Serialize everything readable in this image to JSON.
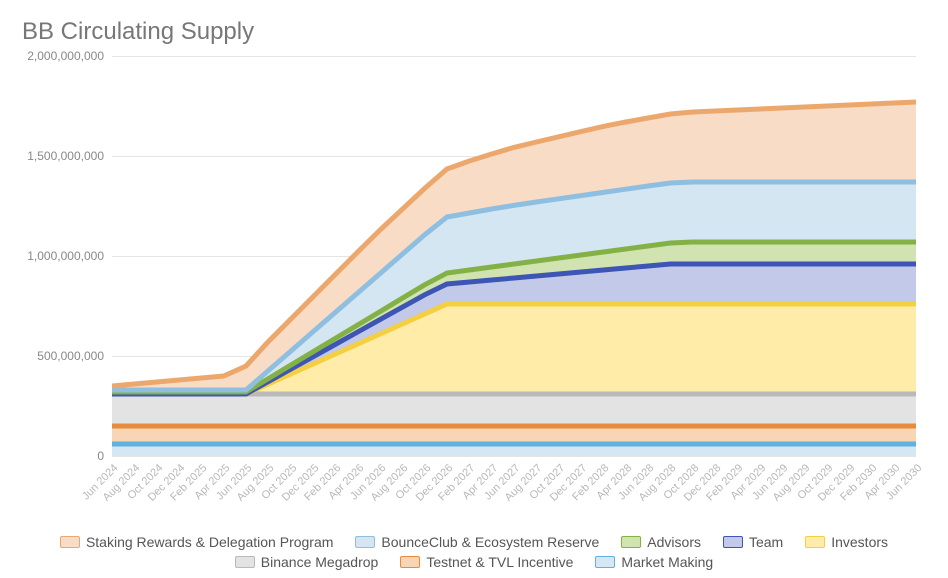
{
  "title": "BB Circulating Supply",
  "chart": {
    "type": "area-stacked",
    "background_color": "#ffffff",
    "grid_color": "#e5e5e5",
    "axis_label_color": "#888888",
    "x_label_color": "#b8b8b8",
    "title_color": "#777777",
    "title_fontsize": 24,
    "axis_fontsize": 12,
    "ylim": [
      0,
      2000000000
    ],
    "ytick_step": 500000000,
    "yticks": [
      {
        "v": 0,
        "label": "0"
      },
      {
        "v": 500000000,
        "label": "500,000,000"
      },
      {
        "v": 1000000000,
        "label": "1,000,000,000"
      },
      {
        "v": 1500000000,
        "label": "1,500,000,000"
      },
      {
        "v": 2000000000,
        "label": "2,000,000,000"
      }
    ],
    "categories": [
      "Jun 2024",
      "Aug 2024",
      "Oct 2024",
      "Dec 2024",
      "Feb 2025",
      "Apr 2025",
      "Jun 2025",
      "Aug 2025",
      "Oct 2025",
      "Dec 2025",
      "Feb 2026",
      "Apr 2026",
      "Jun 2026",
      "Aug 2026",
      "Oct 2026",
      "Dec 2026",
      "Feb 2027",
      "Apr 2027",
      "Jun 2027",
      "Aug 2027",
      "Oct 2027",
      "Dec 2027",
      "Feb 2028",
      "Apr 2028",
      "Jun 2028",
      "Aug 2028",
      "Oct 2028",
      "Dec 2028",
      "Feb 2029",
      "Apr 2029",
      "Jun 2029",
      "Aug 2029",
      "Oct 2029",
      "Dec 2029",
      "Feb 2030",
      "Apr 2030",
      "Jun 2030"
    ],
    "series": [
      {
        "name": "Market Making",
        "fill": "#d4e7f3",
        "stroke": "#61b0df",
        "values": [
          60000000,
          60000000,
          60000000,
          60000000,
          60000000,
          60000000,
          60000000,
          60000000,
          60000000,
          60000000,
          60000000,
          60000000,
          60000000,
          60000000,
          60000000,
          60000000,
          60000000,
          60000000,
          60000000,
          60000000,
          60000000,
          60000000,
          60000000,
          60000000,
          60000000,
          60000000,
          60000000,
          60000000,
          60000000,
          60000000,
          60000000,
          60000000,
          60000000,
          60000000,
          60000000,
          60000000,
          60000000
        ]
      },
      {
        "name": "Testnet & TVL Incentive",
        "fill": "#f7d5b5",
        "stroke": "#e88c3c",
        "values": [
          90000000,
          90000000,
          90000000,
          90000000,
          90000000,
          90000000,
          90000000,
          90000000,
          90000000,
          90000000,
          90000000,
          90000000,
          90000000,
          90000000,
          90000000,
          90000000,
          90000000,
          90000000,
          90000000,
          90000000,
          90000000,
          90000000,
          90000000,
          90000000,
          90000000,
          90000000,
          90000000,
          90000000,
          90000000,
          90000000,
          90000000,
          90000000,
          90000000,
          90000000,
          90000000,
          90000000,
          90000000
        ]
      },
      {
        "name": "Binance Megadrop",
        "fill": "#e3e3e3",
        "stroke": "#b9b9b9",
        "values": [
          160000000,
          160000000,
          160000000,
          160000000,
          160000000,
          160000000,
          160000000,
          160000000,
          160000000,
          160000000,
          160000000,
          160000000,
          160000000,
          160000000,
          160000000,
          160000000,
          160000000,
          160000000,
          160000000,
          160000000,
          160000000,
          160000000,
          160000000,
          160000000,
          160000000,
          160000000,
          160000000,
          160000000,
          160000000,
          160000000,
          160000000,
          160000000,
          160000000,
          160000000,
          160000000,
          160000000,
          160000000
        ]
      },
      {
        "name": "Investors",
        "fill": "#feeca8",
        "stroke": "#f4cf3f",
        "values": [
          0,
          0,
          0,
          0,
          0,
          0,
          0,
          50000000,
          100000000,
          150000000,
          200000000,
          250000000,
          300000000,
          350000000,
          400000000,
          450000000,
          450000000,
          450000000,
          450000000,
          450000000,
          450000000,
          450000000,
          450000000,
          450000000,
          450000000,
          450000000,
          450000000,
          450000000,
          450000000,
          450000000,
          450000000,
          450000000,
          450000000,
          450000000,
          450000000,
          450000000,
          450000000
        ]
      },
      {
        "name": "Team",
        "fill": "#c2c9e9",
        "stroke": "#3d55b4",
        "values": [
          0,
          0,
          0,
          0,
          0,
          0,
          0,
          12000000,
          24000000,
          36000000,
          48000000,
          60000000,
          72000000,
          84000000,
          96000000,
          100000000,
          110000000,
          120000000,
          130000000,
          140000000,
          150000000,
          160000000,
          170000000,
          180000000,
          190000000,
          200000000,
          200000000,
          200000000,
          200000000,
          200000000,
          200000000,
          200000000,
          200000000,
          200000000,
          200000000,
          200000000,
          200000000
        ]
      },
      {
        "name": "Advisors",
        "fill": "#d1e3b1",
        "stroke": "#84b145",
        "values": [
          10000000,
          10000000,
          10000000,
          10000000,
          10000000,
          10000000,
          10000000,
          15000000,
          20000000,
          25000000,
          30000000,
          35000000,
          40000000,
          45000000,
          50000000,
          55000000,
          60000000,
          65000000,
          70000000,
          75000000,
          80000000,
          85000000,
          90000000,
          95000000,
          100000000,
          105000000,
          110000000,
          110000000,
          110000000,
          110000000,
          110000000,
          110000000,
          110000000,
          110000000,
          110000000,
          110000000,
          110000000
        ]
      },
      {
        "name": "BounceClub & Ecosystem Reserve",
        "fill": "#d5e6f3",
        "stroke": "#8ebfe0",
        "values": [
          10000000,
          10000000,
          10000000,
          10000000,
          10000000,
          10000000,
          10000000,
          40000000,
          70000000,
          100000000,
          130000000,
          160000000,
          190000000,
          220000000,
          250000000,
          280000000,
          285000000,
          290000000,
          293000000,
          295000000,
          296000000,
          297000000,
          298000000,
          299000000,
          300000000,
          300000000,
          300000000,
          300000000,
          300000000,
          300000000,
          300000000,
          300000000,
          300000000,
          300000000,
          300000000,
          300000000,
          300000000
        ]
      },
      {
        "name": "Staking Rewards & Delegation Program",
        "fill": "#f8dcc5",
        "stroke": "#eca86c",
        "values": [
          20000000,
          30000000,
          40000000,
          50000000,
          60000000,
          70000000,
          120000000,
          145000000,
          160000000,
          175000000,
          190000000,
          205000000,
          218000000,
          225000000,
          232000000,
          240000000,
          260000000,
          275000000,
          290000000,
          300000000,
          310000000,
          320000000,
          330000000,
          336000000,
          340000000,
          345000000,
          350000000,
          355000000,
          360000000,
          365000000,
          370000000,
          375000000,
          380000000,
          385000000,
          390000000,
          395000000,
          400000000
        ]
      }
    ],
    "legend_order": [
      "Staking Rewards & Delegation Program",
      "BounceClub & Ecosystem Reserve",
      "Advisors",
      "Team",
      "Investors",
      "Binance Megadrop",
      "Testnet & TVL Incentive",
      "Market Making"
    ]
  }
}
